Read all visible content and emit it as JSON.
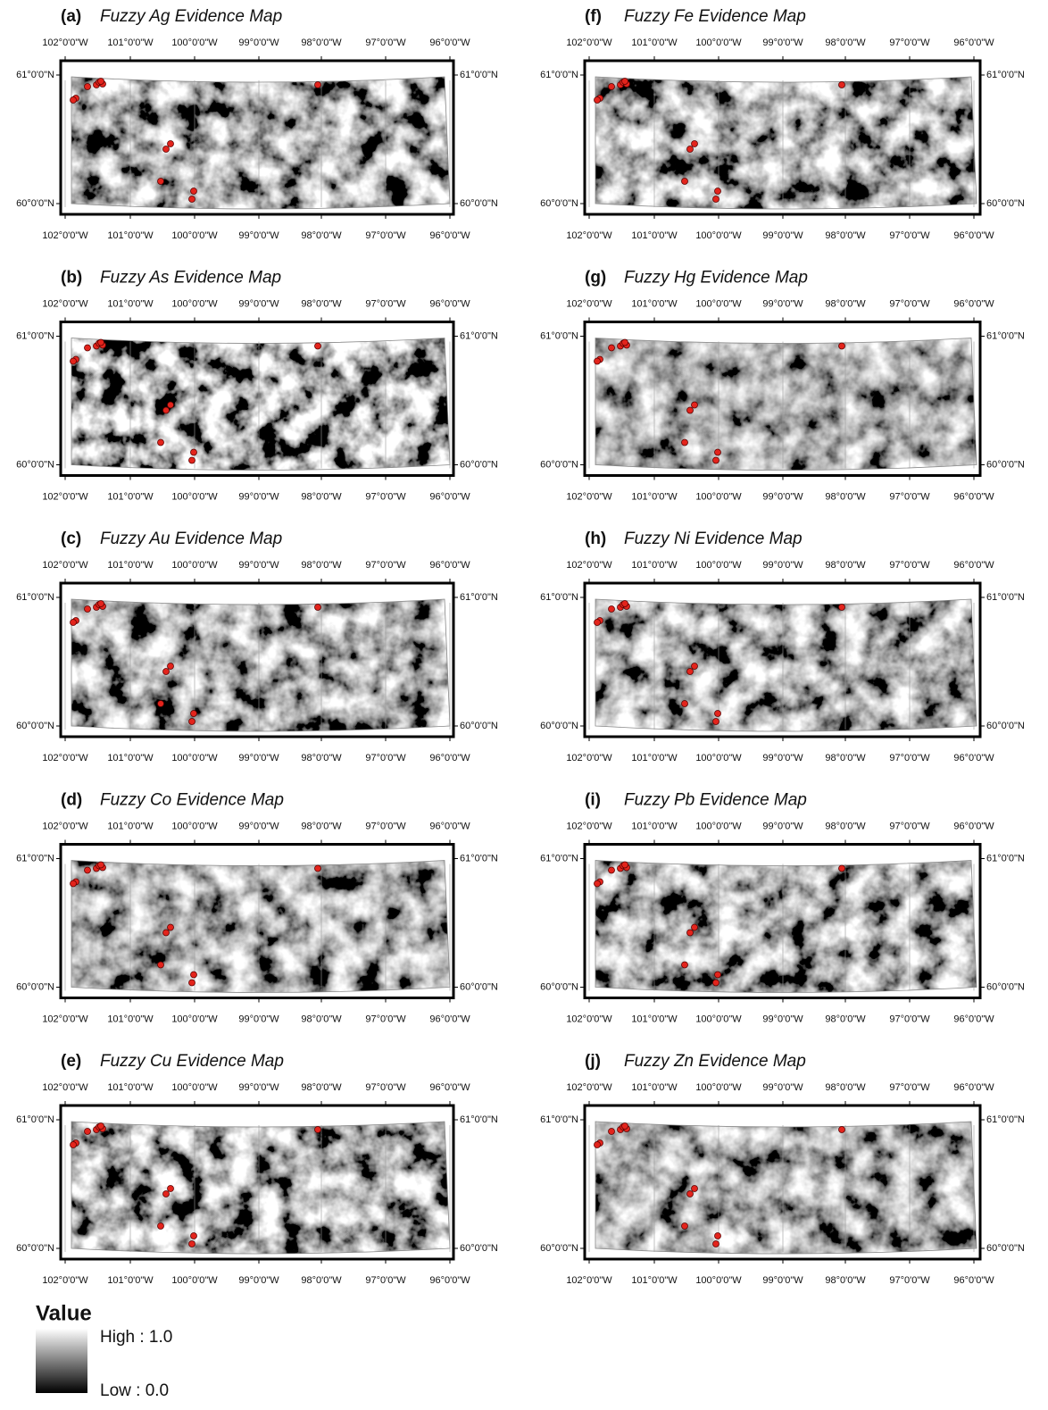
{
  "panels": [
    {
      "label": "(a)",
      "title": "Fuzzy Ag Evidence Map"
    },
    {
      "label": "(b)",
      "title": "Fuzzy As Evidence Map"
    },
    {
      "label": "(c)",
      "title": "Fuzzy Au Evidence Map"
    },
    {
      "label": "(d)",
      "title": "Fuzzy Co Evidence Map"
    },
    {
      "label": "(e)",
      "title": "Fuzzy Cu Evidence Map"
    },
    {
      "label": "(f)",
      "title": "Fuzzy Fe Evidence Map"
    },
    {
      "label": "(g)",
      "title": "Fuzzy Hg Evidence Map"
    },
    {
      "label": "(h)",
      "title": "Fuzzy Ni Evidence Map"
    },
    {
      "label": "(i)",
      "title": "Fuzzy Pb Evidence Map"
    },
    {
      "label": "(j)",
      "title": "Fuzzy Zn Evidence Map"
    }
  ],
  "lon_labels": [
    "102°0'0\"W",
    "101°0'0\"W",
    "100°0'0\"W",
    "99°0'0\"W",
    "98°0'0\"W",
    "97°0'0\"W",
    "96°0'0\"W"
  ],
  "lat_labels": [
    "61°0'0\"N",
    "60°0'0\"N"
  ],
  "legend": {
    "title": "Value",
    "high": "High : 1.0",
    "low": "Low : 0.0"
  }
}
